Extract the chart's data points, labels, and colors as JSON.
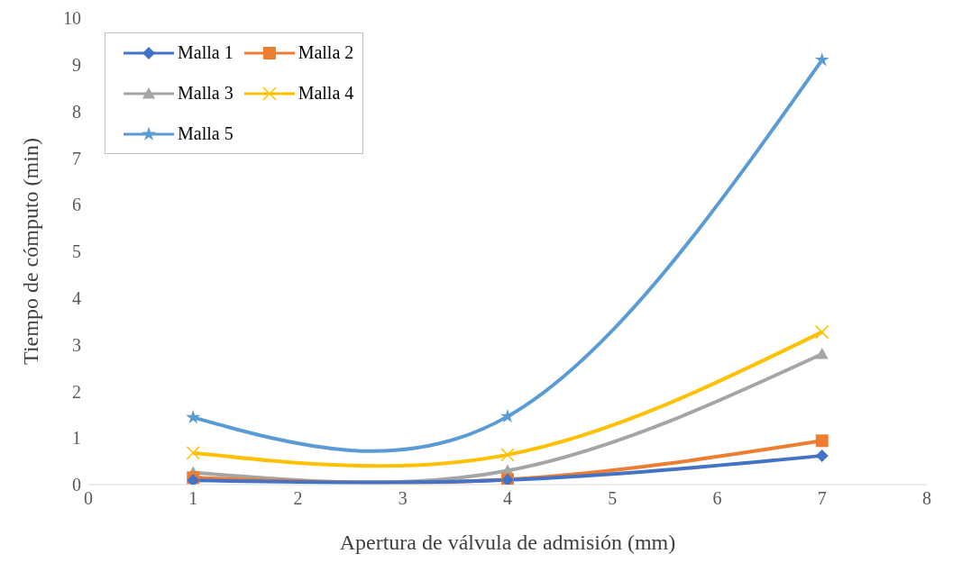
{
  "chart_data": {
    "type": "line",
    "xlabel": "Apertura de válvula de admisión (mm)",
    "ylabel": "Tiempo de cómputo (min)",
    "xlim": [
      0,
      8
    ],
    "xticks": [
      0,
      1,
      2,
      3,
      4,
      5,
      6,
      7,
      8
    ],
    "ylim": [
      0,
      10
    ],
    "yticks": [
      0,
      1,
      2,
      3,
      4,
      5,
      6,
      7,
      8,
      9,
      10
    ],
    "grid": false,
    "legend": "top left",
    "x": [
      1,
      4,
      7
    ],
    "series": [
      {
        "name": "Malla 1",
        "color": "#4472c4",
        "marker": "diamond",
        "values": [
          0.09,
          0.1,
          0.62
        ]
      },
      {
        "name": "Malla 2",
        "color": "#ed7d31",
        "marker": "square",
        "values": [
          0.15,
          0.11,
          0.94
        ]
      },
      {
        "name": "Malla 3",
        "color": "#a5a5a5",
        "marker": "triangle",
        "values": [
          0.26,
          0.3,
          2.8
        ]
      },
      {
        "name": "Malla 4",
        "color": "#ffc000",
        "marker": "cross",
        "values": [
          0.68,
          0.64,
          3.27
        ]
      },
      {
        "name": "Malla 5",
        "color": "#5b9bd5",
        "marker": "star",
        "values": [
          1.44,
          1.46,
          9.1
        ]
      }
    ]
  }
}
